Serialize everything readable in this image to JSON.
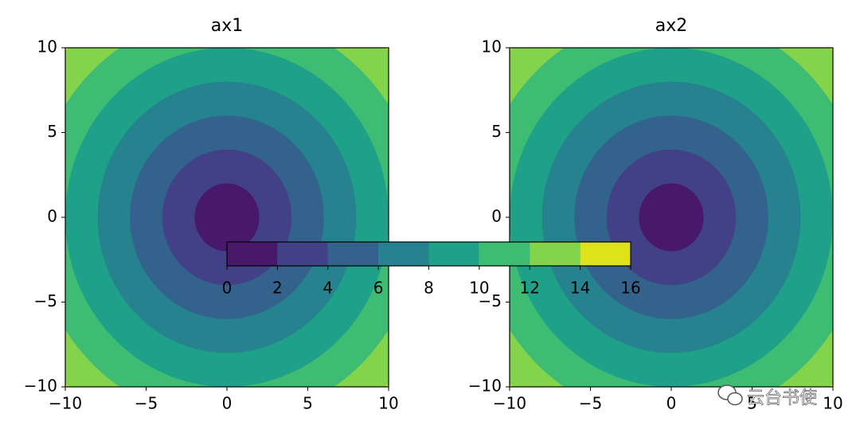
{
  "chart_data": [
    {
      "type": "contour",
      "title": "ax1",
      "levels": [
        0,
        2,
        4,
        6,
        8,
        10,
        12,
        14,
        16
      ],
      "colors": [
        "#48186a",
        "#424086",
        "#33638d",
        "#26828e",
        "#1fa088",
        "#3fbc73",
        "#84d44b",
        "#dde318"
      ],
      "xlim": [
        -10,
        10
      ],
      "ylim": [
        -10,
        10
      ],
      "xticks": [
        {
          "value": -10,
          "label": "−10"
        },
        {
          "value": -5,
          "label": "−5"
        },
        0,
        5,
        10
      ],
      "yticks": [
        {
          "value": -10,
          "label": "−10"
        },
        {
          "value": -5,
          "label": "−5"
        },
        0,
        5,
        10
      ]
    },
    {
      "type": "contour",
      "title": "ax2",
      "levels": [
        0,
        2,
        4,
        6,
        8,
        10,
        12,
        14,
        16
      ],
      "colors": [
        "#48186a",
        "#424086",
        "#33638d",
        "#26828e",
        "#1fa088",
        "#3fbc73",
        "#84d44b",
        "#dde318"
      ],
      "xlim": [
        -10,
        10
      ],
      "ylim": [
        -10,
        10
      ],
      "xticks": [
        {
          "value": -10,
          "label": "−10"
        },
        {
          "value": -5,
          "label": "−5"
        },
        0,
        5,
        10
      ],
      "yticks": [
        {
          "value": -10,
          "label": "−10"
        },
        {
          "value": -5,
          "label": "−5"
        },
        0,
        5,
        10
      ]
    },
    {
      "type": "colorbar",
      "levels": [
        0,
        2,
        4,
        6,
        8,
        10,
        12,
        14,
        16
      ],
      "colors": [
        "#48186a",
        "#424086",
        "#33638d",
        "#26828e",
        "#1fa088",
        "#3fbc73",
        "#84d44b",
        "#dde318"
      ],
      "xlim": [
        0,
        16
      ],
      "xticks": [
        0,
        2,
        4,
        6,
        8,
        10,
        12,
        14,
        16
      ]
    }
  ],
  "watermark": "云台书使"
}
